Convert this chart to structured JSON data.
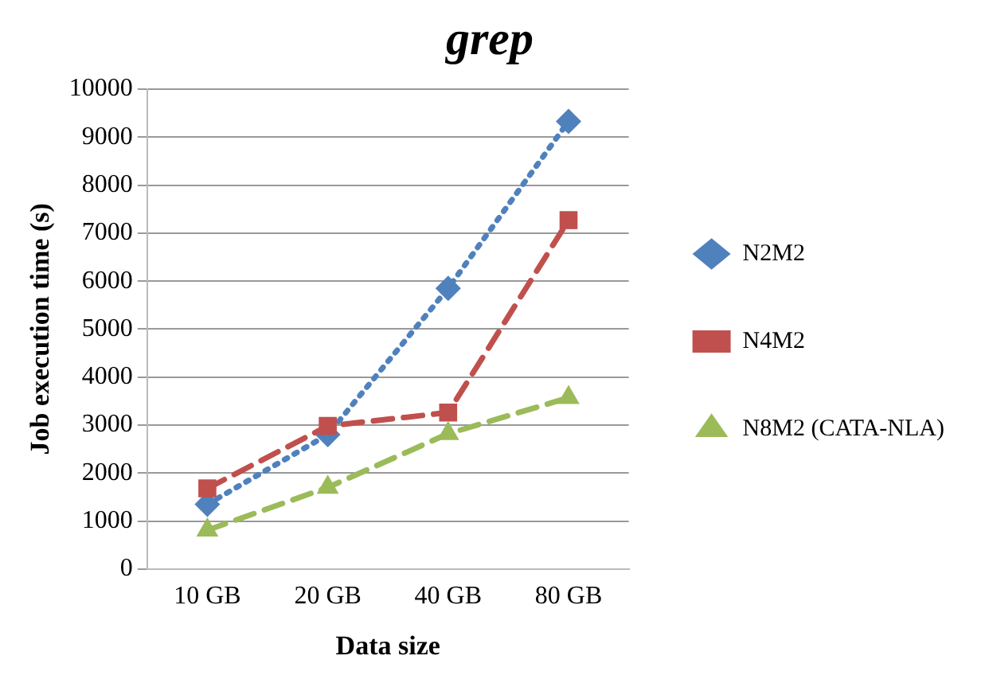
{
  "chart_data": {
    "type": "line",
    "title": "grep",
    "xlabel": "Data size",
    "ylabel": "Job execution time (s)",
    "categories": [
      "10 GB",
      "20 GB",
      "40 GB",
      "80 GB"
    ],
    "series": [
      {
        "name": "N2M2",
        "color": "#4f81bd",
        "marker": "diamond",
        "line_style": "dotted",
        "values": [
          1350,
          2800,
          5850,
          9330
        ]
      },
      {
        "name": "N4M2",
        "color": "#c0504d",
        "marker": "square",
        "line_style": "dashed",
        "values": [
          1680,
          2980,
          3260,
          7270
        ]
      },
      {
        "name": "N8M2 (CATA-NLA)",
        "color": "#9bbb59",
        "marker": "triangle",
        "line_style": "dashed",
        "values": [
          810,
          1700,
          2820,
          3570
        ]
      }
    ],
    "ylim": [
      0,
      10000
    ],
    "yticks": [
      0,
      1000,
      2000,
      3000,
      4000,
      5000,
      6000,
      7000,
      8000,
      9000,
      10000
    ],
    "grid": "y",
    "legend": "right"
  }
}
